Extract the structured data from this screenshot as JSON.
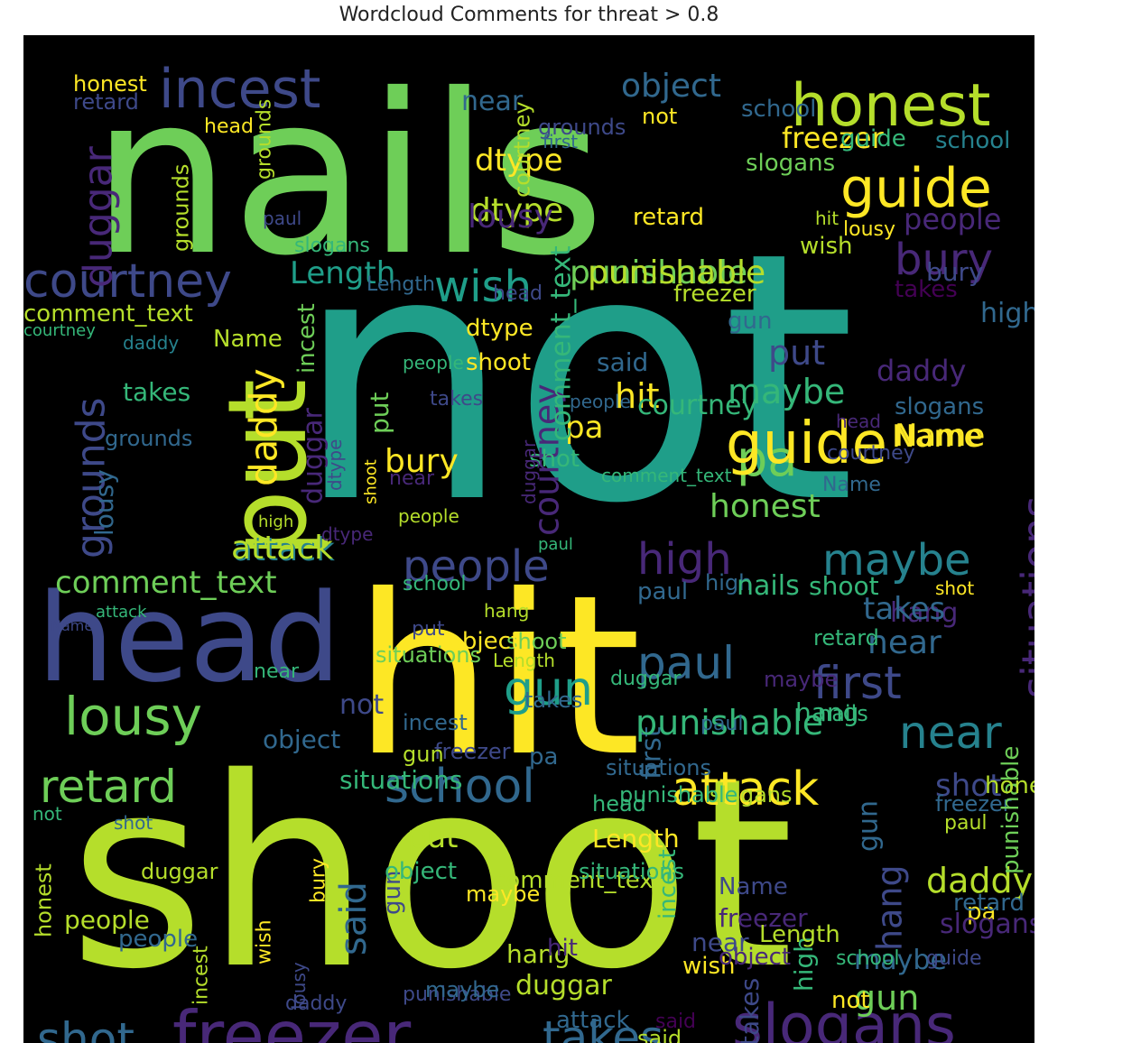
{
  "title": "Wordcloud Comments for threat > 0.8",
  "colors": {
    "background": "#000000",
    "yellow": "#fde725",
    "lime": "#b5de2b",
    "green": "#6ece58",
    "teal": "#35b779",
    "sea": "#1f9e89",
    "cyan": "#26828e",
    "blue": "#31688e",
    "indigo": "#3e4989",
    "violet": "#482878",
    "purple": "#440154"
  },
  "words": [
    {
      "t": "not",
      "c": "sea"
    },
    {
      "t": "shoot",
      "c": "lime"
    },
    {
      "t": "nails",
      "c": "green"
    },
    {
      "t": "hit",
      "c": "yellow"
    },
    {
      "t": "head",
      "c": "indigo"
    },
    {
      "t": "put",
      "c": "lime"
    },
    {
      "t": "freezer",
      "c": "violet"
    },
    {
      "t": "slogans",
      "c": "violet"
    },
    {
      "t": "honest",
      "c": "lime"
    },
    {
      "t": "incest",
      "c": "indigo"
    },
    {
      "t": "guide",
      "c": "yellow"
    },
    {
      "t": "courtney",
      "c": "indigo"
    },
    {
      "t": "lousy",
      "c": "green"
    },
    {
      "t": "retard",
      "c": "green"
    },
    {
      "t": "school",
      "c": "blue"
    },
    {
      "t": "attack",
      "c": "yellow"
    },
    {
      "t": "people",
      "c": "indigo"
    },
    {
      "t": "maybe",
      "c": "cyan"
    },
    {
      "t": "paul",
      "c": "blue"
    },
    {
      "t": "gun",
      "c": "sea"
    },
    {
      "t": "first",
      "c": "indigo"
    },
    {
      "t": "near",
      "c": "cyan"
    },
    {
      "t": "situations",
      "c": "violet"
    },
    {
      "t": "bury",
      "c": "violet"
    },
    {
      "t": "wish",
      "c": "sea"
    },
    {
      "t": "high",
      "c": "violet"
    },
    {
      "t": "takes",
      "c": "blue"
    },
    {
      "t": "shot",
      "c": "blue"
    },
    {
      "t": "object",
      "c": "blue"
    },
    {
      "t": "duggar",
      "c": "violet"
    },
    {
      "t": "grounds",
      "c": "indigo"
    },
    {
      "t": "punishable",
      "c": "green"
    },
    {
      "t": "comment_text",
      "c": "green"
    },
    {
      "t": "daddy",
      "c": "yellow"
    },
    {
      "t": "said",
      "c": "blue"
    },
    {
      "t": "hang",
      "c": "indigo"
    },
    {
      "t": "pa",
      "c": "green"
    },
    {
      "t": "Length",
      "c": "sea"
    },
    {
      "t": "dtype",
      "c": "yellow"
    },
    {
      "t": "Name",
      "c": "yellow"
    },
    {
      "t": "near",
      "c": "blue"
    },
    {
      "t": "object",
      "c": "blue"
    },
    {
      "t": "honest",
      "c": "yellow"
    },
    {
      "t": "retard",
      "c": "indigo"
    },
    {
      "t": "school",
      "c": "blue"
    },
    {
      "t": "freezer",
      "c": "yellow"
    },
    {
      "t": "grounds",
      "c": "indigo"
    },
    {
      "t": "first",
      "c": "blue"
    },
    {
      "t": "head",
      "c": "yellow"
    },
    {
      "t": "not",
      "c": "yellow"
    },
    {
      "t": "guide",
      "c": "teal"
    },
    {
      "t": "courtney",
      "c": "violet"
    },
    {
      "t": "dtype",
      "c": "lime"
    },
    {
      "t": "lousy",
      "c": "violet"
    },
    {
      "t": "attack",
      "c": "cyan"
    },
    {
      "t": "hang",
      "c": "violet"
    },
    {
      "t": "slogans",
      "c": "green"
    },
    {
      "t": "school",
      "c": "cyan"
    },
    {
      "t": "paul",
      "c": "indigo"
    },
    {
      "t": "retard",
      "c": "yellow"
    },
    {
      "t": "hit",
      "c": "lime"
    },
    {
      "t": "lousy",
      "c": "yellow"
    },
    {
      "t": "wish",
      "c": "lime"
    },
    {
      "t": "people",
      "c": "violet"
    },
    {
      "t": "bury",
      "c": "indigo"
    },
    {
      "t": "punishable",
      "c": "lime"
    },
    {
      "t": "takes",
      "c": "purple"
    },
    {
      "t": "freezer",
      "c": "lime"
    },
    {
      "t": "Length",
      "c": "blue"
    },
    {
      "t": "grounds",
      "c": "lime"
    },
    {
      "t": "comment_text",
      "c": "lime"
    },
    {
      "t": "courtney",
      "c": "teal"
    },
    {
      "t": "daddy",
      "c": "cyan"
    },
    {
      "t": "Name",
      "c": "lime"
    },
    {
      "t": "head",
      "c": "indigo"
    },
    {
      "t": "dtype",
      "c": "yellow"
    },
    {
      "t": "shoot",
      "c": "yellow"
    },
    {
      "t": "gun",
      "c": "blue"
    },
    {
      "t": "high",
      "c": "blue"
    },
    {
      "t": "said",
      "c": "blue"
    },
    {
      "t": "put",
      "c": "indigo"
    },
    {
      "t": "daddy",
      "c": "violet"
    },
    {
      "t": "takes",
      "c": "teal"
    },
    {
      "t": "grounds",
      "c": "blue"
    },
    {
      "t": "duggar",
      "c": "violet"
    },
    {
      "t": "lousy",
      "c": "blue"
    },
    {
      "t": "hit",
      "c": "yellow"
    },
    {
      "t": "maybe",
      "c": "teal"
    },
    {
      "t": "guide",
      "c": "yellow"
    },
    {
      "t": "pa",
      "c": "yellow"
    },
    {
      "t": "Name",
      "c": "yellow"
    },
    {
      "t": "honest",
      "c": "green"
    },
    {
      "t": "attack",
      "c": "lime"
    },
    {
      "t": "comment_text",
      "c": "teal"
    },
    {
      "t": "slogans",
      "c": "blue"
    },
    {
      "t": "people",
      "c": "blue"
    },
    {
      "t": "shot",
      "c": "teal"
    },
    {
      "t": "bury",
      "c": "yellow"
    },
    {
      "t": "put",
      "c": "green"
    },
    {
      "t": "maybe",
      "c": "blue"
    },
    {
      "t": "high",
      "c": "blue"
    },
    {
      "t": "takes",
      "c": "blue"
    },
    {
      "t": "near",
      "c": "blue"
    },
    {
      "t": "shoot",
      "c": "teal"
    },
    {
      "t": "nails",
      "c": "teal"
    },
    {
      "t": "shot",
      "c": "yellow"
    },
    {
      "t": "gun",
      "c": "green"
    },
    {
      "t": "first",
      "c": "blue"
    },
    {
      "t": "punishable",
      "c": "teal"
    },
    {
      "t": "situations",
      "c": "teal"
    },
    {
      "t": "school",
      "c": "teal"
    },
    {
      "t": "shoot",
      "c": "green"
    },
    {
      "t": "retard",
      "c": "teal"
    },
    {
      "t": "object",
      "c": "yellow"
    },
    {
      "t": "paul",
      "c": "blue"
    },
    {
      "t": "near",
      "c": "teal"
    },
    {
      "t": "hang",
      "c": "teal"
    },
    {
      "t": "maybe",
      "c": "violet"
    },
    {
      "t": "shot",
      "c": "indigo"
    },
    {
      "t": "freezer",
      "c": "blue"
    },
    {
      "t": "head",
      "c": "teal"
    },
    {
      "t": "Length",
      "c": "yellow"
    },
    {
      "t": "put",
      "c": "lime"
    },
    {
      "t": "not",
      "c": "indigo"
    },
    {
      "t": "said",
      "c": "lime"
    },
    {
      "t": "daddy",
      "c": "lime"
    },
    {
      "t": "pa",
      "c": "yellow"
    },
    {
      "t": "gun",
      "c": "blue"
    },
    {
      "t": "high",
      "c": "teal"
    },
    {
      "t": "duggar",
      "c": "lime"
    },
    {
      "t": "situations",
      "c": "blue"
    },
    {
      "t": "wish",
      "c": "yellow"
    },
    {
      "t": "attack",
      "c": "blue"
    },
    {
      "t": "first",
      "c": "green"
    },
    {
      "t": "courtney",
      "c": "blue"
    },
    {
      "t": "Length",
      "c": "green"
    },
    {
      "t": "not",
      "c": "yellow"
    },
    {
      "t": "hang",
      "c": "lime"
    },
    {
      "t": "situations",
      "c": "blue"
    },
    {
      "t": "nails",
      "c": "teal"
    },
    {
      "t": "takes",
      "c": "indigo"
    },
    {
      "t": "slogans",
      "c": "violet"
    },
    {
      "t": "freezer",
      "c": "violet"
    },
    {
      "t": "shot",
      "c": "blue"
    },
    {
      "t": "wish",
      "c": "yellow"
    },
    {
      "t": "guide",
      "c": "indigo"
    },
    {
      "t": "incest",
      "c": "blue"
    },
    {
      "t": "bury",
      "c": "yellow"
    },
    {
      "t": "lousy",
      "c": "indigo"
    },
    {
      "t": "said",
      "c": "purple"
    },
    {
      "t": "comment_text",
      "c": "lime"
    },
    {
      "t": "Length",
      "c": "lime"
    },
    {
      "t": "gun",
      "c": "indigo"
    },
    {
      "t": "people",
      "c": "blue"
    },
    {
      "t": "incest",
      "c": "teal"
    },
    {
      "t": "object",
      "c": "violet"
    },
    {
      "t": "hit",
      "c": "violet"
    },
    {
      "t": "maybe",
      "c": "yellow"
    },
    {
      "t": "punishable",
      "c": "indigo"
    },
    {
      "t": "slogans",
      "c": "lime"
    },
    {
      "t": "daddy",
      "c": "indigo"
    },
    {
      "t": "duggar",
      "c": "lime"
    },
    {
      "t": "put",
      "c": "indigo"
    },
    {
      "t": "incest",
      "c": "lime"
    },
    {
      "t": "pa",
      "c": "blue"
    },
    {
      "t": "Name",
      "c": "indigo"
    },
    {
      "t": "people",
      "c": "lime"
    },
    {
      "t": "school",
      "c": "teal"
    },
    {
      "t": "punishable",
      "c": "green"
    },
    {
      "t": "situations",
      "c": "teal"
    },
    {
      "t": "object",
      "c": "teal"
    },
    {
      "t": "near",
      "c": "indigo"
    },
    {
      "t": "paul",
      "c": "blue"
    },
    {
      "t": "dtype",
      "c": "violet"
    },
    {
      "t": "maybe",
      "c": "blue"
    },
    {
      "t": "honest",
      "c": "lime"
    },
    {
      "t": "not",
      "c": "teal"
    },
    {
      "t": "attack",
      "c": "teal"
    },
    {
      "t": "hang",
      "c": "lime"
    },
    {
      "t": "freezer",
      "c": "indigo"
    },
    {
      "t": "gun",
      "c": "lime"
    },
    {
      "t": "Length",
      "c": "lime"
    },
    {
      "t": "duggar",
      "c": "teal"
    },
    {
      "t": "Name",
      "c": "indigo"
    },
    {
      "t": "courtney",
      "c": "lime"
    },
    {
      "t": "situations",
      "c": "green"
    },
    {
      "t": "takes",
      "c": "blue"
    },
    {
      "t": "slogans",
      "c": "teal"
    },
    {
      "t": "grounds",
      "c": "lime"
    },
    {
      "t": "honest",
      "c": "lime"
    },
    {
      "t": "retard",
      "c": "blue"
    },
    {
      "t": "paul",
      "c": "teal"
    },
    {
      "t": "duggar",
      "c": "violet"
    },
    {
      "t": "people",
      "c": "teal"
    },
    {
      "t": "head",
      "c": "violet"
    },
    {
      "t": "courtney",
      "c": "indigo"
    },
    {
      "t": "Name",
      "c": "blue"
    },
    {
      "t": "punishable",
      "c": "teal"
    },
    {
      "t": "high",
      "c": "lime"
    },
    {
      "t": "near",
      "c": "violet"
    },
    {
      "t": "dtype",
      "c": "indigo"
    },
    {
      "t": "people",
      "c": "lime"
    },
    {
      "t": "incest",
      "c": "green"
    },
    {
      "t": "shoot",
      "c": "yellow"
    },
    {
      "t": "takes",
      "c": "indigo"
    },
    {
      "t": "comment_text",
      "c": "teal"
    },
    {
      "t": "courtney",
      "c": "teal"
    },
    {
      "t": "paul",
      "c": "lime"
    },
    {
      "t": "grounds",
      "c": "green"
    },
    {
      "t": "dtype",
      "c": "lime"
    },
    {
      "t": "hit",
      "c": "lime"
    },
    {
      "t": "lousy",
      "c": "teal"
    },
    {
      "t": "retard",
      "c": "lime"
    },
    {
      "t": "school",
      "c": "blue"
    },
    {
      "t": "first",
      "c": "green"
    },
    {
      "t": "head",
      "c": "lime"
    },
    {
      "t": "put",
      "c": "lime"
    },
    {
      "t": "pa",
      "c": "green"
    },
    {
      "t": "comment_text",
      "c": "lime"
    },
    {
      "t": "duggar",
      "c": "violet"
    },
    {
      "t": "object",
      "c": "lime"
    },
    {
      "t": "people",
      "c": "teal"
    },
    {
      "t": "Name",
      "c": "teal"
    },
    {
      "t": "Name",
      "c": "teal"
    },
    {
      "t": "grounds",
      "c": "blue"
    },
    {
      "t": "nails",
      "c": "teal"
    },
    {
      "t": "high",
      "c": "yellow"
    },
    {
      "t": "daddy",
      "c": "blue"
    },
    {
      "t": "school",
      "c": "teal"
    }
  ]
}
